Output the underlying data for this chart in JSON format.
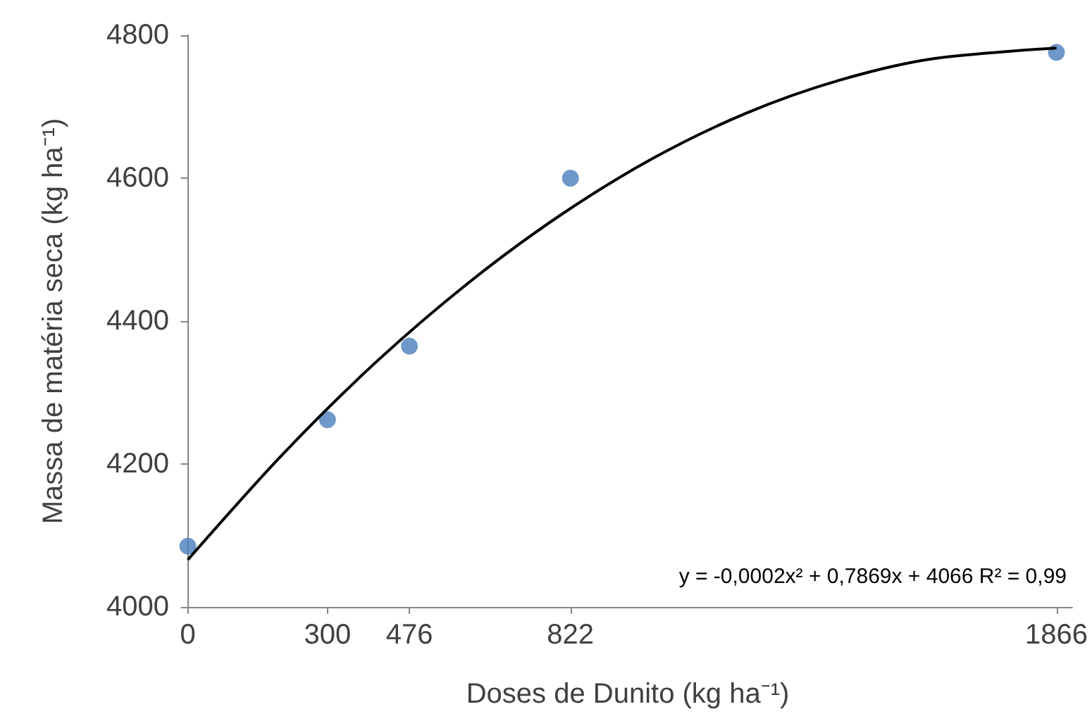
{
  "chart_data": {
    "type": "scatter",
    "xlabel": "Doses de Dunito (kg ha⁻¹)",
    "ylabel": "Massa de matéria seca (kg ha⁻¹)",
    "xlim": [
      -10,
      1900
    ],
    "xticks": [
      0,
      300,
      476,
      822,
      1866
    ],
    "ylim": [
      4000,
      4800
    ],
    "yticks": [
      4000,
      4200,
      4400,
      4600,
      4800
    ],
    "grid": false,
    "marker": "circle",
    "series": [
      {
        "color": "#4a7ebb",
        "x": [
          0,
          300,
          476,
          822,
          1866
        ],
        "values": [
          4085,
          4262,
          4365,
          4600,
          4776
        ]
      },
      {
        "type": "line",
        "color": "#000000",
        "marker": "none",
        "line_style": "solid",
        "x": [
          0,
          200,
          400,
          600,
          800,
          1000,
          1200,
          1400,
          1600,
          1866
        ],
        "values": [
          4066,
          4211,
          4340,
          4452,
          4548,
          4628,
          4691,
          4737,
          4767,
          4782
        ]
      }
    ],
    "annotations": [
      "y = -0,0002x² + 0,7869x + 4066 R² = 0,99"
    ]
  }
}
